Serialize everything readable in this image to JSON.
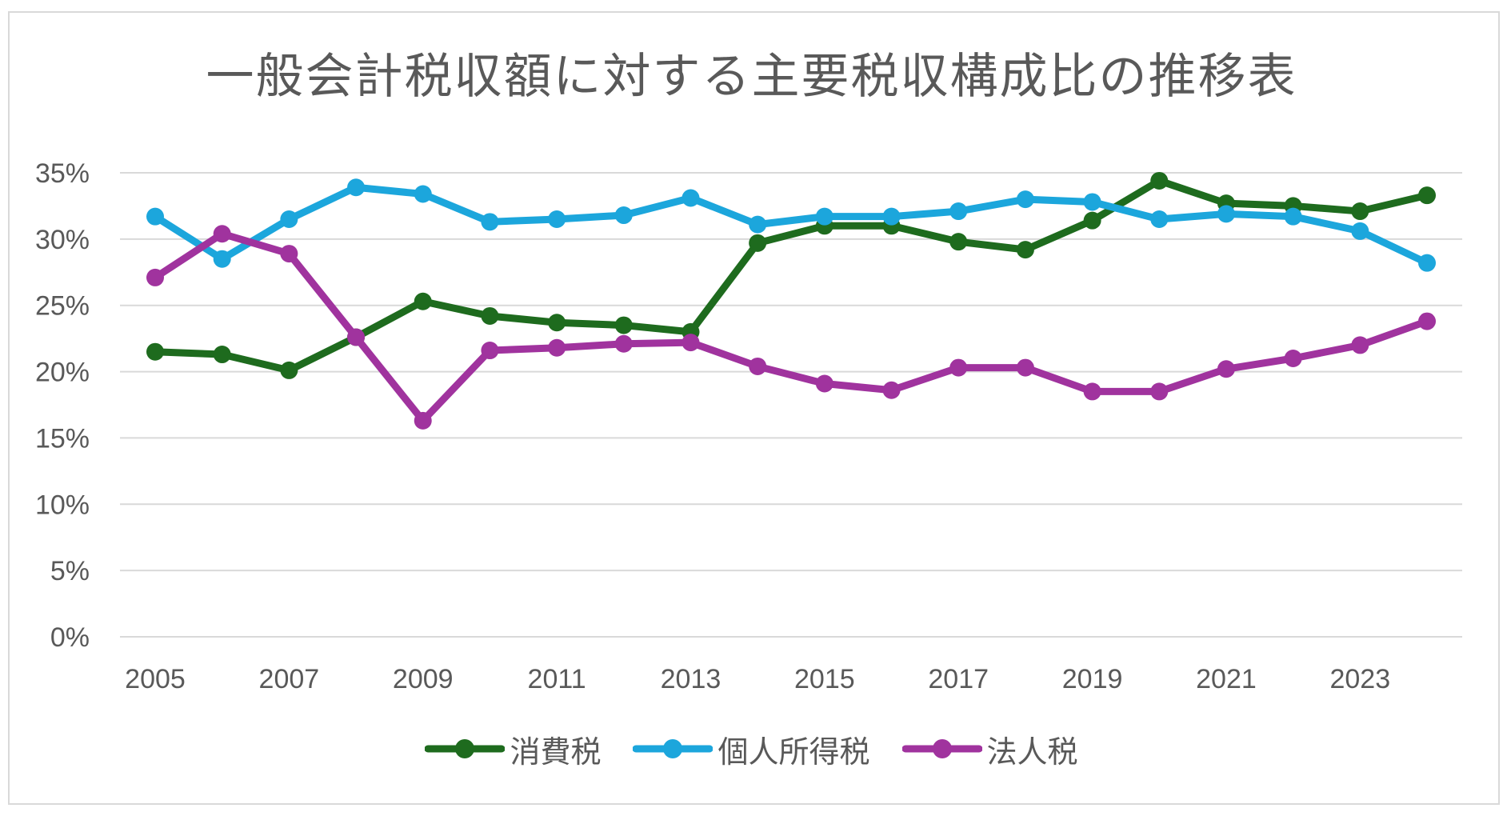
{
  "chart_data": {
    "type": "line",
    "title": "一般会計税収額に対する主要税収構成比の推移表",
    "x": [
      2005,
      2006,
      2007,
      2008,
      2009,
      2010,
      2011,
      2012,
      2013,
      2014,
      2015,
      2016,
      2017,
      2018,
      2019,
      2020,
      2021,
      2022,
      2023,
      2024
    ],
    "xticks": [
      "2005",
      "2007",
      "2009",
      "2011",
      "2013",
      "2015",
      "2017",
      "2019",
      "2021",
      "2023"
    ],
    "ylim": [
      0,
      0.35
    ],
    "yticks": [
      {
        "value": 0,
        "label": "0%"
      },
      {
        "value": 0.05,
        "label": "5%"
      },
      {
        "value": 0.1,
        "label": "10%"
      },
      {
        "value": 0.15,
        "label": "15%"
      },
      {
        "value": 0.2,
        "label": "20%"
      },
      {
        "value": 0.25,
        "label": "25%"
      },
      {
        "value": 0.3,
        "label": "30%"
      },
      {
        "value": 0.35,
        "label": "35%"
      }
    ],
    "grid": true,
    "legend_position": "bottom",
    "series": [
      {
        "name": "消費税",
        "color": "#1e6b1e",
        "values": [
          0.215,
          0.213,
          0.201,
          0.226,
          0.253,
          0.242,
          0.237,
          0.235,
          0.23,
          0.297,
          0.31,
          0.31,
          0.298,
          0.292,
          0.314,
          0.344,
          0.327,
          0.325,
          0.321,
          0.333
        ]
      },
      {
        "name": "個人所得税",
        "color": "#1ca6dc",
        "values": [
          0.317,
          0.285,
          0.315,
          0.339,
          0.334,
          0.313,
          0.315,
          0.318,
          0.331,
          0.311,
          0.317,
          0.317,
          0.321,
          0.33,
          0.328,
          0.315,
          0.319,
          0.317,
          0.306,
          0.282
        ]
      },
      {
        "name": "法人税",
        "color": "#a0339e",
        "values": [
          0.271,
          0.304,
          0.289,
          0.226,
          0.163,
          0.216,
          0.218,
          0.221,
          0.222,
          0.204,
          0.191,
          0.186,
          0.203,
          0.203,
          0.185,
          0.185,
          0.202,
          0.21,
          0.22,
          0.238
        ]
      }
    ]
  }
}
